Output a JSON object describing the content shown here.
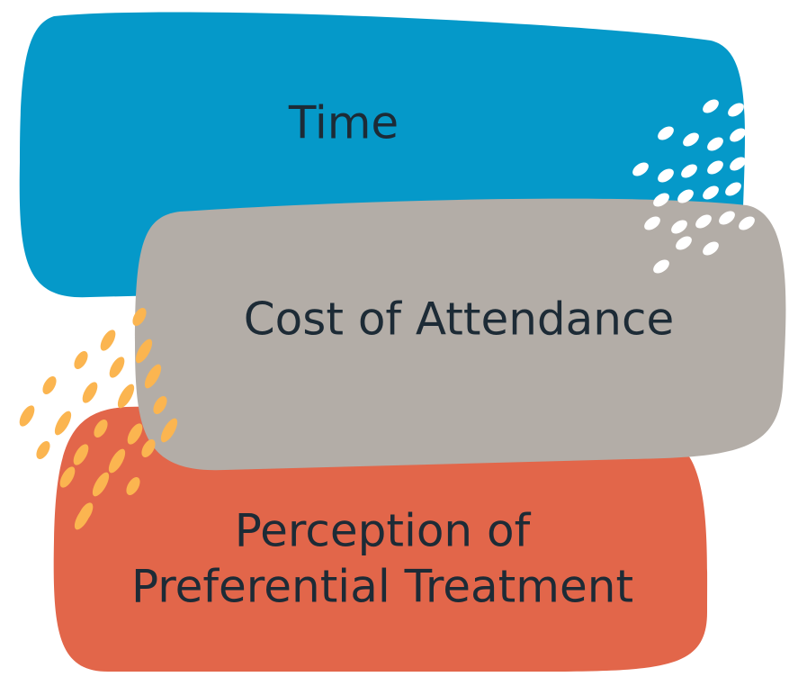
{
  "items": [
    {
      "label": "Time"
    },
    {
      "label": "Cost of Attendance"
    },
    {
      "lines": [
        "Perception of",
        "Preferential Treatment"
      ]
    }
  ]
}
